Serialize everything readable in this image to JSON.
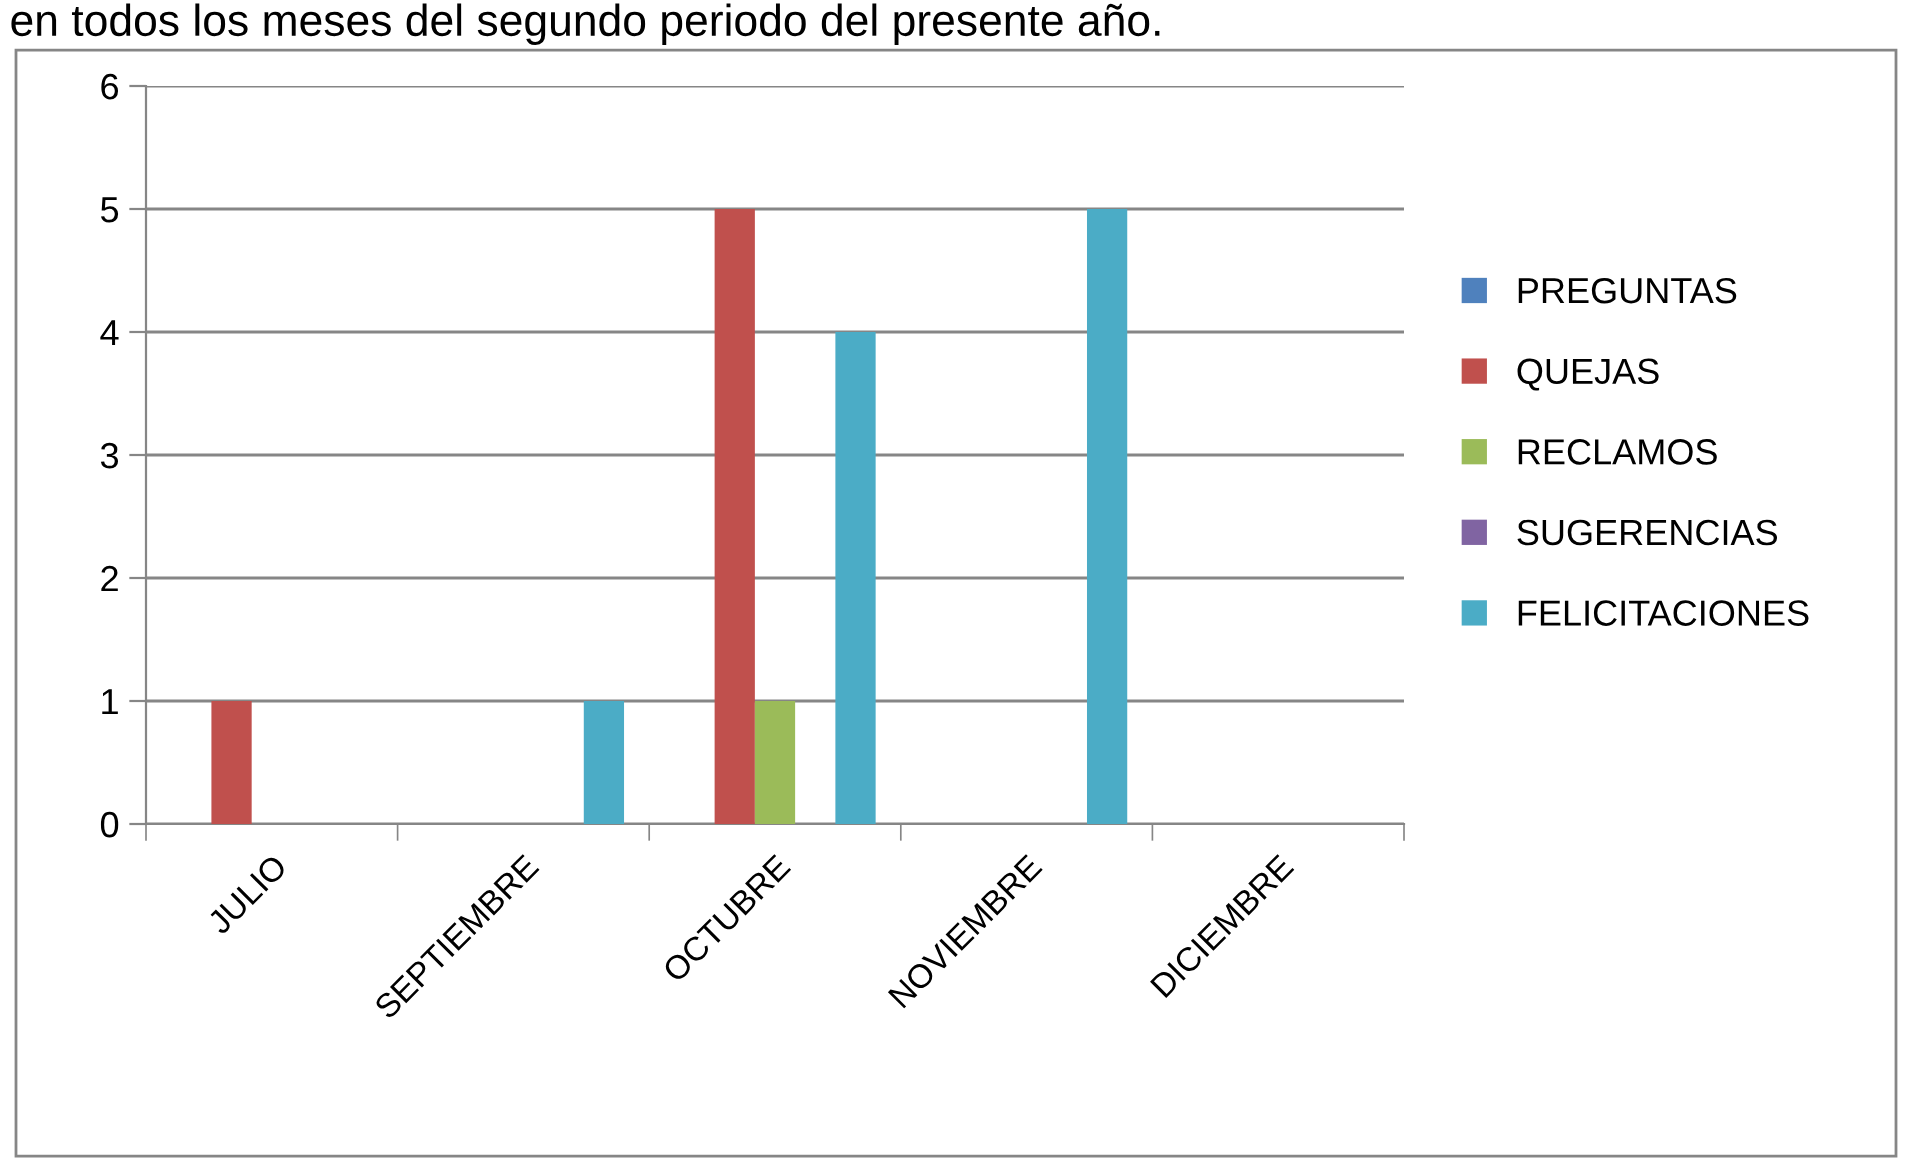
{
  "chart_data": {
    "type": "bar",
    "title": "en todos los meses del segundo periodo del presente año.",
    "categories": [
      "JULIO",
      "SEPTIEMBRE",
      "OCTUBRE",
      "NOVIEMBRE",
      "DICIEMBRE"
    ],
    "series": [
      {
        "name": "PREGUNTAS",
        "color": "#4f81bd",
        "values": [
          0,
          0,
          0,
          0,
          0
        ]
      },
      {
        "name": "QUEJAS",
        "color": "#c0504d",
        "values": [
          1,
          0,
          5,
          0,
          0
        ]
      },
      {
        "name": "RECLAMOS",
        "color": "#9bbb59",
        "values": [
          0,
          0,
          1,
          0,
          0
        ]
      },
      {
        "name": "SUGERENCIAS",
        "color": "#8064a2",
        "values": [
          0,
          0,
          0,
          0,
          0
        ]
      },
      {
        "name": "FELICITACIONES",
        "color": "#4bacc6",
        "values": [
          0,
          1,
          4,
          5,
          0
        ]
      }
    ],
    "ylim": [
      0,
      6
    ],
    "yticks": [
      0,
      1,
      2,
      3,
      4,
      5,
      6
    ],
    "grid": "y",
    "legend": "right"
  }
}
